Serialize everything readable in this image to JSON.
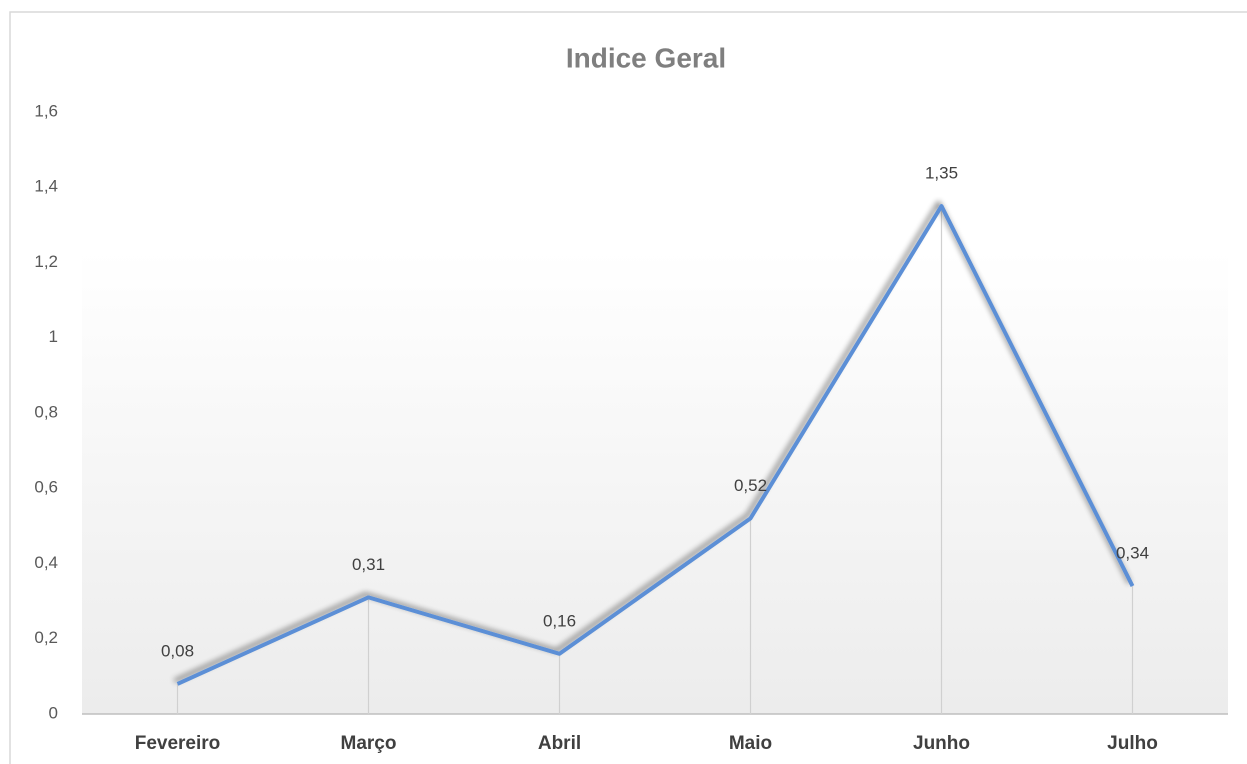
{
  "chart_data": {
    "type": "line",
    "title": "Indice Geral",
    "categories": [
      "Fevereiro",
      "Março",
      "Abril",
      "Maio",
      "Junho",
      "Julho"
    ],
    "series": [
      {
        "name": "Indice Geral",
        "color": "#5b8fd6",
        "values": [
          0.08,
          0.31,
          0.16,
          0.52,
          1.35,
          0.34
        ],
        "value_labels": [
          "0,08",
          "0,31",
          "0,16",
          "0,52",
          "1,35",
          "0,34"
        ]
      }
    ],
    "ylim": [
      0,
      1.6
    ],
    "yticks": [
      0,
      {
        "value": 0.2,
        "label": "0,2"
      },
      {
        "value": 0.4,
        "label": "0,4"
      },
      {
        "value": 0.6,
        "label": "0,6"
      },
      {
        "value": 0.8,
        "label": "0,8"
      },
      1,
      {
        "value": 1.2,
        "label": "1,2"
      },
      {
        "value": 1.4,
        "label": "1,4"
      },
      {
        "value": 1.6,
        "label": "1,6"
      }
    ],
    "grid": false,
    "drop_lines": true
  }
}
